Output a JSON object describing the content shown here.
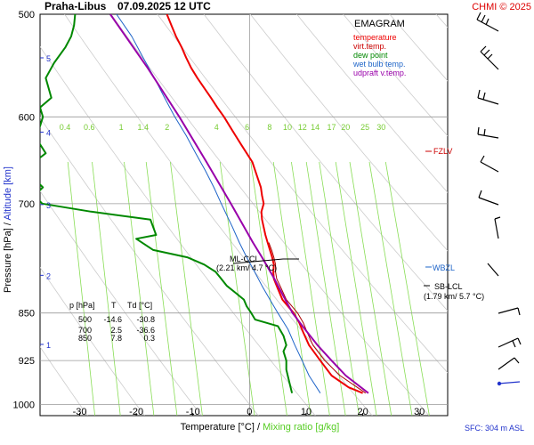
{
  "header": {
    "station": "Praha-Libus",
    "datetime": "07.09.2025 12 UTC",
    "copyright": "CHMI © 2025"
  },
  "legend": {
    "title": "EMAGRAM",
    "items": [
      {
        "label": "temperature",
        "color": "#ee0000"
      },
      {
        "label": "virt.temp.",
        "color": "#aa0000"
      },
      {
        "label": "dew point",
        "color": "#008800"
      },
      {
        "label": "wet bulb temp.",
        "color": "#1e64c8"
      },
      {
        "label": "udpraft v.temp.",
        "color": "#9900aa"
      }
    ]
  },
  "axes": {
    "ylabel_pressure": "Pressure [hPa]",
    "ylabel_sep": "/",
    "ylabel_altitude": "Altitude [km]",
    "xlabel_temperature": "Temperature [°C]",
    "xlabel_sep": "/",
    "xlabel_mixing": "Mixing ratio [g/kg]",
    "surface_note": "SFC: 304 m ASL"
  },
  "levels": {
    "fzlv": "FZLV",
    "wbzl": "WBZL",
    "sb_lcl": "SB-LCL",
    "sb_lcl_detail": "(1.79 km/ 5.7 °C)",
    "ml_lcl": "ML-CCL",
    "ml_lcl_detail": "(2.21 km/ 4.7 °C)"
  },
  "table": {
    "headers": [
      "p [hPa]",
      "T",
      "Td [°C]"
    ],
    "rows": [
      [
        "500",
        "-14.6",
        "-30.8"
      ],
      [
        "700",
        "2.5",
        "-36.6"
      ],
      [
        "850",
        "7.8",
        "0.3"
      ]
    ]
  },
  "chart_data": {
    "type": "line",
    "title": "Praha-Libus 07.09.2025 12 UTC",
    "xlabel": "Temperature [°C] / Mixing ratio [g/kg]",
    "ylabel": "Pressure [hPa] / Altitude [km]",
    "x_scale": "linear",
    "y_scale": "log",
    "xlim": [
      -37,
      35
    ],
    "ylim": [
      1020,
      500
    ],
    "x_ticks": [
      -30,
      -20,
      -10,
      0,
      10,
      20,
      30
    ],
    "y_ticks": [
      500,
      600,
      700,
      850,
      925,
      1000
    ],
    "altitude_ticks_km": [
      1,
      2,
      3,
      4,
      5
    ],
    "mixing_ratio_labels": [
      "0.4",
      "0.6",
      "1",
      "1.4",
      "2",
      "4",
      "6",
      "8",
      "10",
      "12",
      "14",
      "17",
      "20",
      "25",
      "30"
    ],
    "mixing_ratio_values": [
      0.4,
      0.6,
      1,
      1.4,
      2,
      4,
      6,
      8,
      10,
      12,
      14,
      17,
      20,
      25,
      30
    ],
    "series": [
      {
        "name": "temperature",
        "color": "#ee0000",
        "p": [
          980,
          970,
          950,
          925,
          900,
          880,
          865,
          850,
          830,
          810,
          800,
          790,
          780,
          770,
          760,
          750,
          740,
          730,
          720,
          710,
          700,
          690,
          680,
          670,
          660,
          650,
          640,
          630,
          620,
          610,
          600,
          590,
          580,
          570,
          560,
          550,
          540,
          530,
          520,
          510,
          500
        ],
        "t": [
          20,
          17.5,
          14.5,
          12.5,
          10.5,
          9.5,
          8.8,
          7.8,
          5.8,
          4.8,
          4.3,
          4.2,
          4.3,
          4.0,
          3.6,
          3.2,
          2.8,
          2.5,
          2.2,
          2.1,
          2.5,
          2.2,
          2.0,
          1.5,
          1.0,
          0.5,
          -0.5,
          -1.5,
          -2.5,
          -3.5,
          -4.5,
          -5.7,
          -6.8,
          -8.0,
          -9.2,
          -10.3,
          -11.2,
          -12.0,
          -13.0,
          -13.8,
          -14.6
        ]
      },
      {
        "name": "virt.temp.",
        "color": "#aa0000",
        "p": [
          980,
          950,
          925,
          900,
          880,
          865,
          850,
          830,
          810,
          800,
          790,
          780,
          770,
          760,
          750
        ],
        "t": [
          20.5,
          16.0,
          13.3,
          11.2,
          10.2,
          9.5,
          8.5,
          6.5,
          5.4,
          4.8,
          4.6,
          4.6,
          4.3,
          3.9,
          3.4
        ]
      },
      {
        "name": "dew point",
        "color": "#008800",
        "p": [
          980,
          960,
          940,
          925,
          910,
          900,
          885,
          870,
          860,
          850,
          840,
          830,
          820,
          810,
          800,
          790,
          780,
          770,
          760,
          745,
          740,
          730,
          720,
          710,
          700,
          690,
          680,
          670,
          660,
          650,
          640,
          630,
          620,
          610,
          600,
          590,
          580,
          560,
          545,
          530,
          520,
          510,
          500
        ],
        "t": [
          7.5,
          7.0,
          6.5,
          6.5,
          6.0,
          6.5,
          6.0,
          5.0,
          1.0,
          0.3,
          -0.5,
          -1.0,
          -2.5,
          -4.0,
          -5.0,
          -6.0,
          -8.0,
          -11.0,
          -17.0,
          -20.0,
          -16.5,
          -17.0,
          -17.5,
          -28.0,
          -36.6,
          -38.0,
          -36.5,
          -38.0,
          -37.5,
          -38.0,
          -36.0,
          -37.0,
          -38.0,
          -37.0,
          -36.5,
          -37.0,
          -35.0,
          -36.0,
          -34.5,
          -32.5,
          -31.5,
          -31.0,
          -30.8
        ]
      },
      {
        "name": "wet bulb temp.",
        "color": "#1e64c8",
        "p": [
          980,
          950,
          925,
          900,
          875,
          850,
          830,
          810,
          790,
          770,
          750,
          730,
          700,
          680,
          660,
          640,
          620,
          600,
          580,
          560,
          540,
          520,
          500
        ],
        "t": [
          12.5,
          10.5,
          9.3,
          8.0,
          6.8,
          5.0,
          3.6,
          2.2,
          0.9,
          -0.5,
          -1.8,
          -3.0,
          -5.0,
          -6.3,
          -7.8,
          -9.5,
          -11.2,
          -13.2,
          -15.0,
          -16.8,
          -18.8,
          -20.8,
          -23.5
        ]
      },
      {
        "name": "udpraft v.temp.",
        "color": "#9900aa",
        "p": [
          980,
          950,
          925,
          900,
          875,
          850,
          825,
          800,
          770,
          750,
          700,
          650,
          600,
          550,
          500
        ],
        "t": [
          21.0,
          17.0,
          14.5,
          12.0,
          9.8,
          7.6,
          6.0,
          4.4,
          2.2,
          0.6,
          -3.3,
          -7.6,
          -12.4,
          -18.0,
          -24.6
        ]
      }
    ]
  }
}
